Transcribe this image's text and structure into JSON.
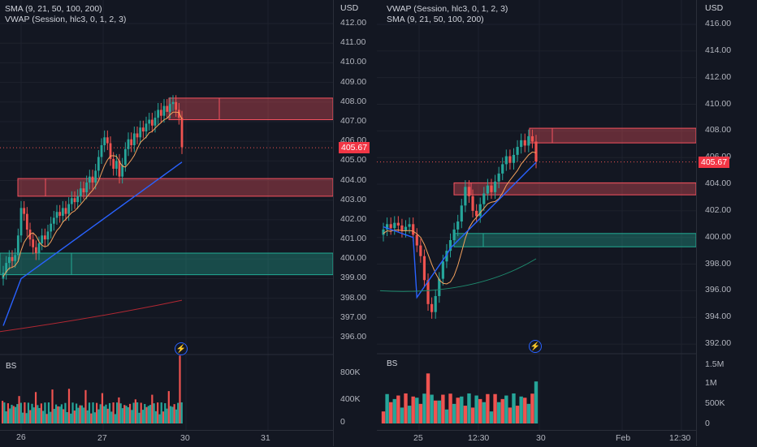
{
  "left_pane": {
    "legend": [
      "SMA (9, 21, 50, 100, 200)",
      "VWAP (Session, hlc3, 0, 1, 2, 3)"
    ],
    "axis_currency": "USD",
    "price_ticks": [
      "412.00",
      "411.00",
      "410.00",
      "409.00",
      "408.00",
      "407.00",
      "406.00",
      "405.00",
      "404.00",
      "403.00",
      "402.00",
      "401.00",
      "400.00",
      "399.00",
      "398.00",
      "397.00",
      "396.00"
    ],
    "current_price": "405.67",
    "volume_label": "BS",
    "volume_ticks": [
      "800K",
      "400K",
      "0"
    ],
    "time_ticks": [
      "26",
      "27",
      "30",
      "31"
    ],
    "colors": {
      "up": "#26a69a",
      "down": "#ef5350",
      "supply": "#f7525f",
      "demand": "#22ab94",
      "vwap": "#2962ff",
      "sma_slow": "#b22833"
    }
  },
  "right_pane": {
    "legend": [
      "VWAP (Session, hlc3, 0, 1, 2, 3)",
      "SMA (9, 21, 50, 100, 200)"
    ],
    "axis_currency": "USD",
    "price_ticks": [
      "416.00",
      "414.00",
      "412.00",
      "410.00",
      "408.00",
      "406.00",
      "404.00",
      "402.00",
      "400.00",
      "398.00",
      "396.00",
      "394.00",
      "392.00"
    ],
    "current_price": "405.67",
    "volume_label": "BS",
    "volume_ticks": [
      "1.5M",
      "1M",
      "500K",
      "0"
    ],
    "time_ticks": [
      "25",
      "12:30",
      "30",
      "Feb",
      "12:30"
    ],
    "colors": {
      "up": "#26a69a",
      "down": "#ef5350",
      "supply": "#f7525f",
      "demand": "#22ab94",
      "vwap": "#2962ff",
      "sma_slow": "#1e8a6e"
    }
  },
  "icons": {
    "flash": "lightning-icon"
  }
}
